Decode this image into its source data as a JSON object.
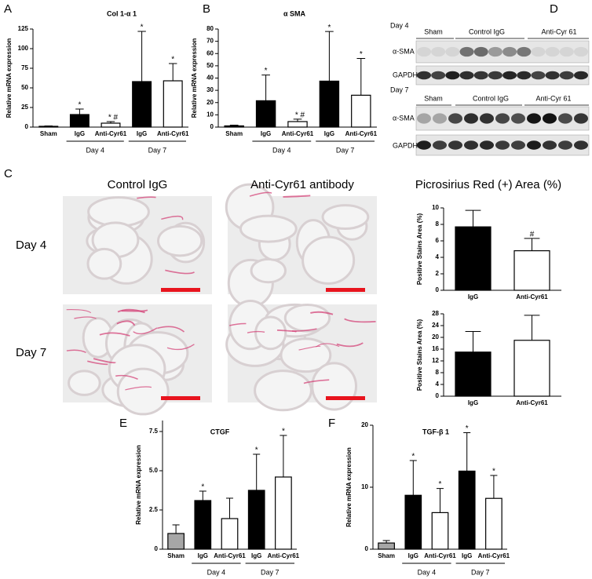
{
  "chart_data": [
    {
      "type": "bar",
      "panel": "A",
      "title": "Col 1-α 1",
      "ylabel": "Relative mRNA expression",
      "categories": [
        "Sham",
        "IgG",
        "Anti-Cyr61",
        "IgG",
        "Anti-Cyr61"
      ],
      "values": [
        1,
        16,
        5,
        58,
        59
      ],
      "errors": [
        0.5,
        7,
        2,
        64,
        22
      ],
      "colors": [
        "#000000",
        "#000000",
        "#ffffff",
        "#000000",
        "#ffffff"
      ],
      "marks": [
        null,
        "*",
        "* #",
        "*",
        "*"
      ],
      "groups": [
        {
          "label": "Day 4",
          "span": [
            1,
            2
          ]
        },
        {
          "label": "Day 7",
          "span": [
            3,
            4
          ]
        }
      ],
      "ylim": [
        0,
        125
      ],
      "yticks": [
        0,
        25,
        50,
        75,
        100,
        125
      ]
    },
    {
      "type": "bar",
      "panel": "B",
      "title": "α SMA",
      "ylabel": "Relative mRNA expression",
      "categories": [
        "Sham",
        "IgG",
        "Anti-Cyr61",
        "IgG",
        "Anti-Cyr61"
      ],
      "values": [
        1,
        21.5,
        4.5,
        37.5,
        26
      ],
      "errors": [
        0.6,
        21,
        2,
        40.5,
        30
      ],
      "colors": [
        "#000000",
        "#000000",
        "#ffffff",
        "#000000",
        "#ffffff"
      ],
      "marks": [
        null,
        "*",
        "* #",
        "*",
        "*"
      ],
      "groups": [
        {
          "label": "Day 4",
          "span": [
            1,
            2
          ]
        },
        {
          "label": "Day 7",
          "span": [
            3,
            4
          ]
        }
      ],
      "ylim": [
        0,
        80
      ],
      "yticks": [
        0,
        10,
        20,
        30,
        40,
        50,
        60,
        70,
        80
      ]
    },
    {
      "type": "bar",
      "ylabel": "Positive Stains Area (%)",
      "categories": [
        "IgG",
        "Anti-Cyr61"
      ],
      "values": [
        7.7,
        4.8
      ],
      "errors": [
        2,
        1.5
      ],
      "colors": [
        "#000000",
        "#ffffff"
      ],
      "marks": [
        null,
        "#"
      ],
      "ylim": [
        0,
        10
      ],
      "yticks": [
        0,
        2,
        4,
        6,
        8,
        10
      ]
    },
    {
      "type": "bar",
      "ylabel": "Positive Stains Area (%)",
      "categories": [
        "IgG",
        "Anti-Cyr61"
      ],
      "values": [
        15,
        19
      ],
      "errors": [
        7,
        8.5
      ],
      "colors": [
        "#000000",
        "#ffffff"
      ],
      "ylim": [
        0,
        28
      ],
      "yticks": [
        0,
        4,
        8,
        12,
        16,
        20,
        24,
        28
      ]
    },
    {
      "type": "bar",
      "panel": "E",
      "title": "CTGF",
      "ylabel": "Relative mRNA expression",
      "categories": [
        "Sham",
        "IgG",
        "Anti-Cyr61",
        "IgG",
        "Anti-Cyr61"
      ],
      "values": [
        1,
        3.1,
        1.95,
        3.75,
        4.6
      ],
      "errors": [
        0.55,
        0.6,
        1.3,
        2.3,
        2.65
      ],
      "colors": [
        "#a6a6a6",
        "#000000",
        "#ffffff",
        "#000000",
        "#ffffff"
      ],
      "marks": [
        null,
        "*",
        null,
        "*",
        "*"
      ],
      "groups": [
        {
          "label": "Day 4",
          "span": [
            1,
            2
          ]
        },
        {
          "label": "Day 7",
          "span": [
            3,
            4
          ]
        }
      ],
      "ylim": [
        0,
        8.2
      ],
      "yticks": [
        0,
        2.5,
        {
          "value": 5,
          "label": "5.0"
        },
        7.5
      ]
    },
    {
      "type": "bar",
      "panel": "F",
      "title": "TGF-β 1",
      "ylabel": "Relative mRNA expression",
      "categories": [
        "Sham",
        "IgG",
        "Anti-Cyr61",
        "IgG",
        "Anti-Cyr61"
      ],
      "values": [
        1,
        8.7,
        5.9,
        12.6,
        8.2
      ],
      "errors": [
        0.4,
        5.6,
        3.9,
        6.2,
        3.7
      ],
      "colors": [
        "#a6a6a6",
        "#000000",
        "#ffffff",
        "#000000",
        "#ffffff"
      ],
      "marks": [
        null,
        "*",
        "*",
        "*",
        "*"
      ],
      "groups": [
        {
          "label": "Day 4",
          "span": [
            1,
            2
          ]
        },
        {
          "label": "Day 7",
          "span": [
            3,
            4
          ]
        }
      ],
      "ylim": [
        0,
        20
      ],
      "yticks": [
        0,
        10,
        20
      ]
    }
  ],
  "micrographs": {
    "panel": "C",
    "columns": [
      "Control IgG",
      "Anti-Cyr61 antibody"
    ],
    "rows": [
      "Day 4",
      "Day 7"
    ],
    "chart_heading": "Picrosirius Red (+) Area (%)"
  },
  "blots": {
    "panel": "D",
    "day4": {
      "label": "Day 4",
      "groups": [
        "Sham",
        "Control IgG",
        "Anti-Cyr 61"
      ],
      "rows": [
        "α-SMA",
        "GAPDH"
      ]
    },
    "day7": {
      "label": "Day 7",
      "groups": [
        "Sham",
        "Control IgG",
        "Anti-Cyr 61"
      ],
      "rows": [
        "α-SMA",
        "GAPDH"
      ]
    }
  }
}
